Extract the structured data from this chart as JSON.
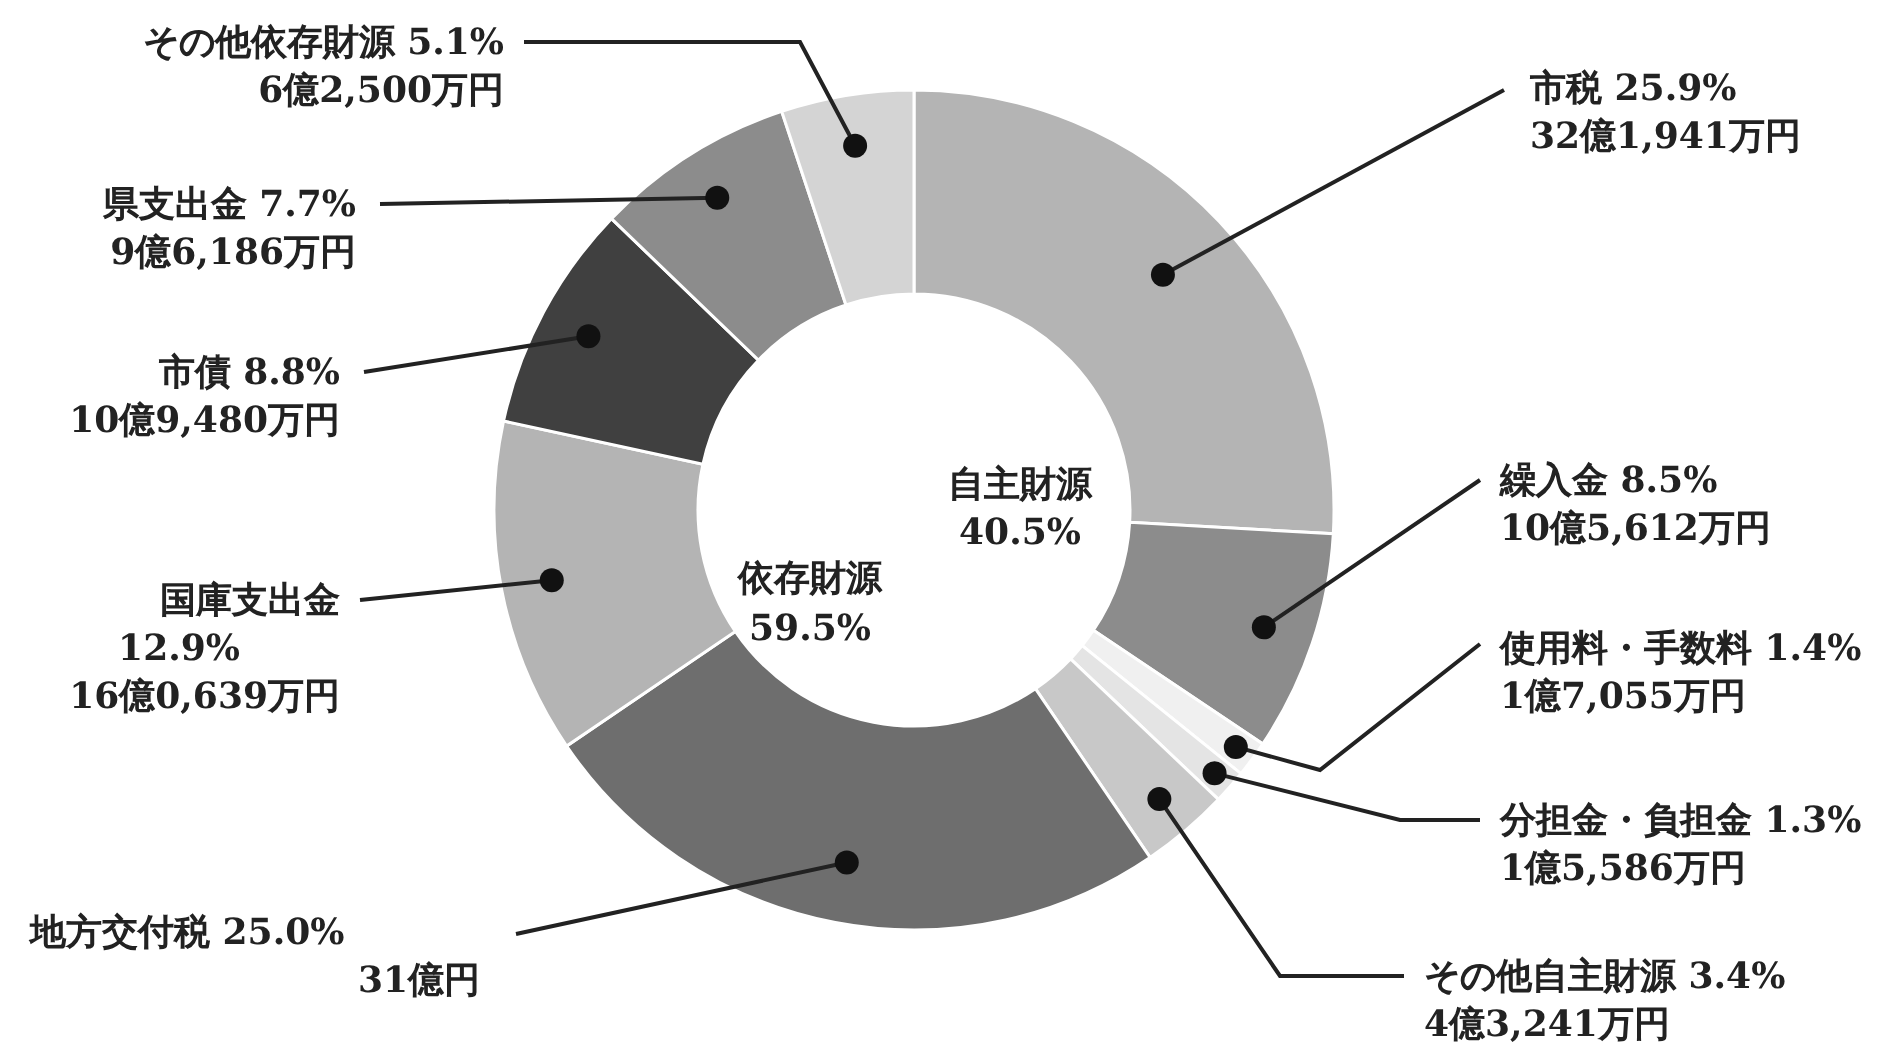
{
  "chart_data": {
    "type": "donut",
    "categories": [
      "市税",
      "繰入金",
      "使用料・手数料",
      "分担金・負担金",
      "その他自主財源",
      "地方交付税",
      "国庫支出金",
      "市債",
      "県支出金",
      "その他依存財源"
    ],
    "values": [
      25.9,
      8.5,
      1.4,
      1.3,
      3.4,
      25.0,
      12.9,
      8.8,
      7.7,
      5.1
    ],
    "value_labels": [
      "25.9%",
      "8.5%",
      "1.4%",
      "1.3%",
      "3.4%",
      "25.0%",
      "12.9%",
      "8.8%",
      "7.7%",
      "5.1%"
    ],
    "colors": [
      "#b4b4b4",
      "#8c8c8c",
      "#f0f0f0",
      "#e4e4e4",
      "#c8c8c8",
      "#6e6e6e",
      "#b4b4b4",
      "#404040",
      "#8c8c8c",
      "#d4d4d4"
    ],
    "annotations": [
      "自主財源 40.5%",
      "依存財源 59.5%",
      {
        "text": "32億1,941万円",
        "x": "市税"
      },
      {
        "text": "10億5,612万円",
        "x": "繰入金"
      },
      {
        "text": "1億7,055万円",
        "x": "使用料・手数料"
      },
      {
        "text": "1億5,586万円",
        "x": "分担金・負担金"
      },
      {
        "text": "4億3,241万円",
        "x": "その他自主財源"
      },
      {
        "text": "31億円",
        "x": "地方交付税"
      },
      {
        "text": "16億0,639万円",
        "x": "国庫支出金"
      },
      {
        "text": "10億9,480万円",
        "x": "市債"
      },
      {
        "text": "9億6,186万円",
        "x": "県支出金"
      },
      {
        "text": "6億2,500万円",
        "x": "その他依存財源"
      }
    ]
  }
}
